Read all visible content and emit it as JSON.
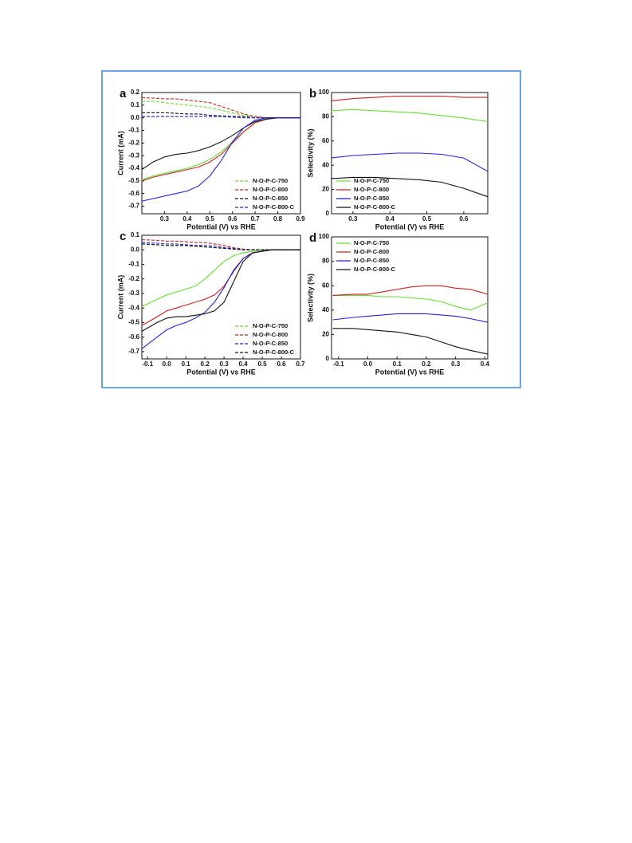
{
  "chart_data": [
    {
      "type": "line",
      "panel": "a",
      "xlabel": "Potential (V) vs RHE",
      "ylabel": "Current (mA)",
      "x": [
        0.2,
        0.25,
        0.3,
        0.35,
        0.4,
        0.45,
        0.5,
        0.55,
        0.6,
        0.65,
        0.7,
        0.75,
        0.8,
        0.85,
        0.9
      ],
      "xlim": [
        0.2,
        0.9
      ],
      "xticks": [
        0.3,
        0.4,
        0.5,
        0.6,
        0.7,
        0.8,
        0.9
      ],
      "ylim": [
        -0.76,
        0.2
      ],
      "yticks": [
        0.2,
        0.1,
        {
          "value": 0,
          "label": "0.0"
        },
        -0.1,
        -0.2,
        -0.3,
        -0.4,
        -0.5,
        -0.6,
        -0.7
      ],
      "legend": "lower right",
      "series": [
        {
          "name": "N-O-P-C-750",
          "color": "#66dd33",
          "values": [
            -0.49,
            -0.46,
            -0.44,
            -0.42,
            -0.4,
            -0.37,
            -0.33,
            -0.27,
            -0.19,
            -0.11,
            -0.04,
            -0.01,
            0,
            0,
            0
          ],
          "ring_values": [
            0.13,
            0.13,
            0.12,
            0.11,
            0.1,
            0.09,
            0.08,
            0.06,
            0.04,
            0.02,
            0.01,
            0,
            0,
            0,
            0
          ]
        },
        {
          "name": "N-O-P-C-800",
          "color": "#cc2222",
          "values": [
            -0.5,
            -0.47,
            -0.45,
            -0.43,
            -0.41,
            -0.39,
            -0.35,
            -0.29,
            -0.2,
            -0.11,
            -0.04,
            -0.01,
            0,
            0,
            0
          ],
          "ring_values": [
            0.16,
            0.155,
            0.15,
            0.15,
            0.14,
            0.13,
            0.12,
            0.09,
            0.06,
            0.03,
            0.01,
            0,
            0,
            0,
            0
          ]
        },
        {
          "name": "N-O-P-C-850",
          "color": "#111111",
          "values": [
            -0.41,
            -0.35,
            -0.31,
            -0.29,
            -0.28,
            -0.26,
            -0.23,
            -0.19,
            -0.14,
            -0.08,
            -0.03,
            -0.01,
            0,
            0,
            0
          ],
          "ring_values": [
            0.04,
            0.04,
            0.04,
            0.035,
            0.03,
            0.03,
            0.02,
            0.015,
            0.01,
            0.01,
            0,
            0,
            0,
            0,
            0
          ]
        },
        {
          "name": "N-O-P-C-800-C",
          "color": "#2222dd",
          "values": [
            -0.66,
            -0.64,
            -0.62,
            -0.6,
            -0.58,
            -0.54,
            -0.46,
            -0.34,
            -0.19,
            -0.08,
            -0.02,
            0,
            0,
            0,
            0
          ],
          "ring_values": [
            0.01,
            0.01,
            0.01,
            0.01,
            0.01,
            0.01,
            0.01,
            0.01,
            0.005,
            0,
            0,
            0,
            0,
            0,
            0
          ]
        }
      ]
    },
    {
      "type": "line",
      "panel": "b",
      "xlabel": "Potential (V) vs RHE",
      "ylabel": "Selectivity (%)",
      "x": [
        0.24,
        0.3,
        0.36,
        0.42,
        0.48,
        0.54,
        0.6,
        0.665
      ],
      "xlim": [
        0.242,
        0.665
      ],
      "xticks": [
        0.3,
        0.4,
        0.5,
        0.6
      ],
      "ylim": [
        0,
        100
      ],
      "yticks": [
        0,
        20,
        40,
        60,
        80,
        100
      ],
      "legend": "lower left",
      "series": [
        {
          "name": "N-O-P-C-750",
          "color": "#66dd33",
          "values": [
            85,
            86,
            85,
            84,
            83,
            81,
            79,
            76
          ]
        },
        {
          "name": "N-O-P-C-800",
          "color": "#cc2222",
          "values": [
            93,
            95,
            96,
            97,
            97,
            97,
            96,
            96
          ]
        },
        {
          "name": "N-O-P-C-850",
          "color": "#2222dd",
          "values": [
            46,
            48,
            49,
            50,
            50,
            49,
            46,
            35
          ]
        },
        {
          "name": "N-O-P-C-800-C",
          "color": "#111111",
          "values": [
            29,
            30,
            30,
            29,
            28,
            26,
            21,
            14
          ]
        }
      ]
    },
    {
      "type": "line",
      "panel": "c",
      "xlabel": "Potential (V) vs RHE",
      "ylabel": "Current (mA)",
      "x": [
        -0.13,
        -0.05,
        0,
        0.05,
        0.1,
        0.15,
        0.2,
        0.25,
        0.3,
        0.35,
        0.4,
        0.45,
        0.5,
        0.55,
        0.6,
        0.7
      ],
      "xlim": [
        -0.13,
        0.7
      ],
      "xticks": [
        -0.1,
        {
          "value": 0,
          "label": "0.0"
        },
        0.1,
        0.2,
        0.3,
        0.4,
        0.5,
        0.6,
        0.7
      ],
      "ylim": [
        -0.75,
        0.1
      ],
      "yticks": [
        0.1,
        {
          "value": 0,
          "label": "0.0"
        },
        -0.1,
        -0.2,
        -0.3,
        -0.4,
        -0.5,
        -0.6,
        -0.7
      ],
      "legend": "lower right",
      "series": [
        {
          "name": "N-O-P-C-750",
          "color": "#66dd33",
          "values": [
            -0.39,
            -0.34,
            -0.31,
            -0.29,
            -0.27,
            -0.25,
            -0.2,
            -0.14,
            -0.08,
            -0.04,
            -0.02,
            -0.01,
            0,
            0,
            0,
            0
          ],
          "ring_values": [
            0.04,
            0.035,
            0.03,
            0.03,
            0.03,
            0.025,
            0.02,
            0.015,
            0.01,
            0.005,
            0,
            0,
            0,
            0,
            0,
            0
          ]
        },
        {
          "name": "N-O-P-C-800",
          "color": "#cc2222",
          "values": [
            -0.52,
            -0.46,
            -0.42,
            -0.4,
            -0.38,
            -0.36,
            -0.34,
            -0.31,
            -0.25,
            -0.15,
            -0.06,
            -0.02,
            -0.01,
            0,
            0,
            0
          ],
          "ring_values": [
            0.07,
            0.065,
            0.06,
            0.06,
            0.055,
            0.05,
            0.05,
            0.04,
            0.03,
            0.015,
            0.005,
            0,
            0,
            0,
            0,
            0
          ]
        },
        {
          "name": "N-O-P-C-850",
          "color": "#2222dd",
          "values": [
            -0.68,
            -0.6,
            -0.55,
            -0.52,
            -0.5,
            -0.47,
            -0.43,
            -0.36,
            -0.26,
            -0.14,
            -0.06,
            -0.02,
            -0.01,
            0,
            0,
            0
          ],
          "ring_values": [
            0.05,
            0.045,
            0.04,
            0.04,
            0.035,
            0.03,
            0.03,
            0.025,
            0.015,
            0.01,
            0,
            0,
            0,
            0,
            0,
            0
          ]
        },
        {
          "name": "N-O-P-C-800-C",
          "color": "#111111",
          "values": [
            -0.56,
            -0.5,
            -0.47,
            -0.46,
            -0.46,
            -0.45,
            -0.44,
            -0.42,
            -0.36,
            -0.22,
            -0.08,
            -0.02,
            -0.01,
            0,
            0,
            0
          ],
          "ring_values": [
            0.04,
            0.035,
            0.03,
            0.03,
            0.03,
            0.025,
            0.02,
            0.015,
            0.01,
            0.005,
            0,
            0,
            0,
            0,
            0,
            0
          ]
        }
      ]
    },
    {
      "type": "line",
      "panel": "d",
      "xlabel": "Potential (V) vs RHE",
      "ylabel": "Selectivity (%)",
      "x": [
        -0.12,
        -0.05,
        0,
        0.05,
        0.1,
        0.15,
        0.2,
        0.25,
        0.3,
        0.35,
        0.41
      ],
      "xlim": [
        -0.124,
        0.41
      ],
      "xticks": [
        -0.1,
        {
          "value": 0,
          "label": "0.0"
        },
        0.1,
        0.2,
        0.3,
        0.4
      ],
      "ylim": [
        0,
        100
      ],
      "yticks": [
        0,
        20,
        40,
        60,
        80,
        100
      ],
      "legend": "upper left",
      "series": [
        {
          "name": "N-O-P-C-750",
          "color": "#66dd33",
          "values": [
            52,
            52,
            52,
            51,
            51,
            50,
            49,
            47,
            43,
            40,
            46
          ]
        },
        {
          "name": "N-O-P-C-800",
          "color": "#cc2222",
          "values": [
            52,
            53,
            53,
            55,
            57,
            59,
            60,
            60,
            58,
            57,
            53
          ]
        },
        {
          "name": "N-O-P-C-850",
          "color": "#2222dd",
          "values": [
            32,
            34,
            35,
            36,
            37,
            37,
            37,
            36,
            35,
            33,
            30
          ]
        },
        {
          "name": "N-O-P-C-800-C",
          "color": "#111111",
          "values": [
            25,
            25,
            24,
            23,
            22,
            20,
            18,
            14,
            10,
            7,
            4
          ]
        }
      ]
    }
  ]
}
